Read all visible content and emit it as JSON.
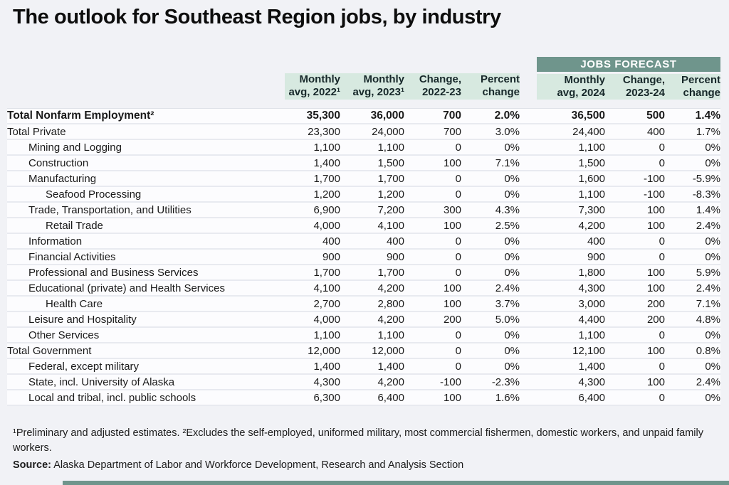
{
  "page": {
    "background_color": "#f1f2f6",
    "accent_teal": "#6f958c",
    "header_mint": "#d7e9e0",
    "row_bg": "#fcfcfe"
  },
  "chart_data": {
    "type": "table",
    "title": "The outlook for Southeast Region jobs, by industry",
    "forecast_banner": "JOBS FORECAST",
    "columns": [
      {
        "group": "history",
        "lines": [
          "Monthly",
          "avg, 2022¹"
        ]
      },
      {
        "group": "history",
        "lines": [
          "Monthly",
          "avg, 2023¹"
        ]
      },
      {
        "group": "history",
        "lines": [
          "Change,",
          "2022-23"
        ]
      },
      {
        "group": "history",
        "lines": [
          "Percent",
          "change"
        ]
      },
      {
        "group": "forecast",
        "lines": [
          "Monthly",
          "avg, 2024"
        ]
      },
      {
        "group": "forecast",
        "lines": [
          "Change,",
          "2023-24"
        ]
      },
      {
        "group": "forecast",
        "lines": [
          "Percent",
          "change"
        ]
      }
    ],
    "rows": [
      {
        "label": "Total Nonfarm Employment²",
        "indent": 0,
        "bold": true,
        "values": [
          "35,300",
          "36,000",
          "700",
          "2.0%",
          "36,500",
          "500",
          "1.4%"
        ]
      },
      {
        "label": "Total Private",
        "indent": 0,
        "bold": false,
        "values": [
          "23,300",
          "24,000",
          "700",
          "3.0%",
          "24,400",
          "400",
          "1.7%"
        ]
      },
      {
        "label": "Mining and Logging",
        "indent": 1,
        "bold": false,
        "values": [
          "1,100",
          "1,100",
          "0",
          "0%",
          "1,100",
          "0",
          "0%"
        ]
      },
      {
        "label": "Construction",
        "indent": 1,
        "bold": false,
        "values": [
          "1,400",
          "1,500",
          "100",
          "7.1%",
          "1,500",
          "0",
          "0%"
        ]
      },
      {
        "label": "Manufacturing",
        "indent": 1,
        "bold": false,
        "values": [
          "1,700",
          "1,700",
          "0",
          "0%",
          "1,600",
          "-100",
          "-5.9%"
        ]
      },
      {
        "label": "Seafood Processing",
        "indent": 2,
        "bold": false,
        "values": [
          "1,200",
          "1,200",
          "0",
          "0%",
          "1,100",
          "-100",
          "-8.3%"
        ]
      },
      {
        "label": "Trade, Transportation, and Utilities",
        "indent": 1,
        "bold": false,
        "values": [
          "6,900",
          "7,200",
          "300",
          "4.3%",
          "7,300",
          "100",
          "1.4%"
        ]
      },
      {
        "label": "Retail Trade",
        "indent": 2,
        "bold": false,
        "values": [
          "4,000",
          "4,100",
          "100",
          "2.5%",
          "4,200",
          "100",
          "2.4%"
        ]
      },
      {
        "label": "Information",
        "indent": 1,
        "bold": false,
        "values": [
          "400",
          "400",
          "0",
          "0%",
          "400",
          "0",
          "0%"
        ]
      },
      {
        "label": "Financial Activities",
        "indent": 1,
        "bold": false,
        "values": [
          "900",
          "900",
          "0",
          "0%",
          "900",
          "0",
          "0%"
        ]
      },
      {
        "label": "Professional and Business Services",
        "indent": 1,
        "bold": false,
        "values": [
          "1,700",
          "1,700",
          "0",
          "0%",
          "1,800",
          "100",
          "5.9%"
        ]
      },
      {
        "label": "Educational (private) and Health Services",
        "indent": 1,
        "bold": false,
        "values": [
          "4,100",
          "4,200",
          "100",
          "2.4%",
          "4,300",
          "100",
          "2.4%"
        ]
      },
      {
        "label": "Health Care",
        "indent": 2,
        "bold": false,
        "values": [
          "2,700",
          "2,800",
          "100",
          "3.7%",
          "3,000",
          "200",
          "7.1%"
        ]
      },
      {
        "label": "Leisure and Hospitality",
        "indent": 1,
        "bold": false,
        "values": [
          "4,000",
          "4,200",
          "200",
          "5.0%",
          "4,400",
          "200",
          "4.8%"
        ]
      },
      {
        "label": "Other Services",
        "indent": 1,
        "bold": false,
        "values": [
          "1,100",
          "1,100",
          "0",
          "0%",
          "1,100",
          "0",
          "0%"
        ]
      },
      {
        "label": "Total Government",
        "indent": 0,
        "bold": false,
        "values": [
          "12,000",
          "12,000",
          "0",
          "0%",
          "12,100",
          "100",
          "0.8%"
        ]
      },
      {
        "label": "Federal, except military",
        "indent": 1,
        "bold": false,
        "values": [
          "1,400",
          "1,400",
          "0",
          "0%",
          "1,400",
          "0",
          "0%"
        ]
      },
      {
        "label": "State, incl. University of Alaska",
        "indent": 1,
        "bold": false,
        "values": [
          "4,300",
          "4,200",
          "-100",
          "-2.3%",
          "4,300",
          "100",
          "2.4%"
        ]
      },
      {
        "label": "Local and tribal, incl. public schools",
        "indent": 1,
        "bold": false,
        "values": [
          "6,300",
          "6,400",
          "100",
          "1.6%",
          "6,400",
          "0",
          "0%"
        ]
      }
    ],
    "footnote": "¹Preliminary and adjusted estimates. ²Excludes the self-employed, uniformed military, most commercial fishermen, domestic workers, and unpaid family workers.",
    "source_label": "Source:",
    "source_text": " Alaska Department of Labor and Workforce Development, Research and Analysis Section"
  }
}
